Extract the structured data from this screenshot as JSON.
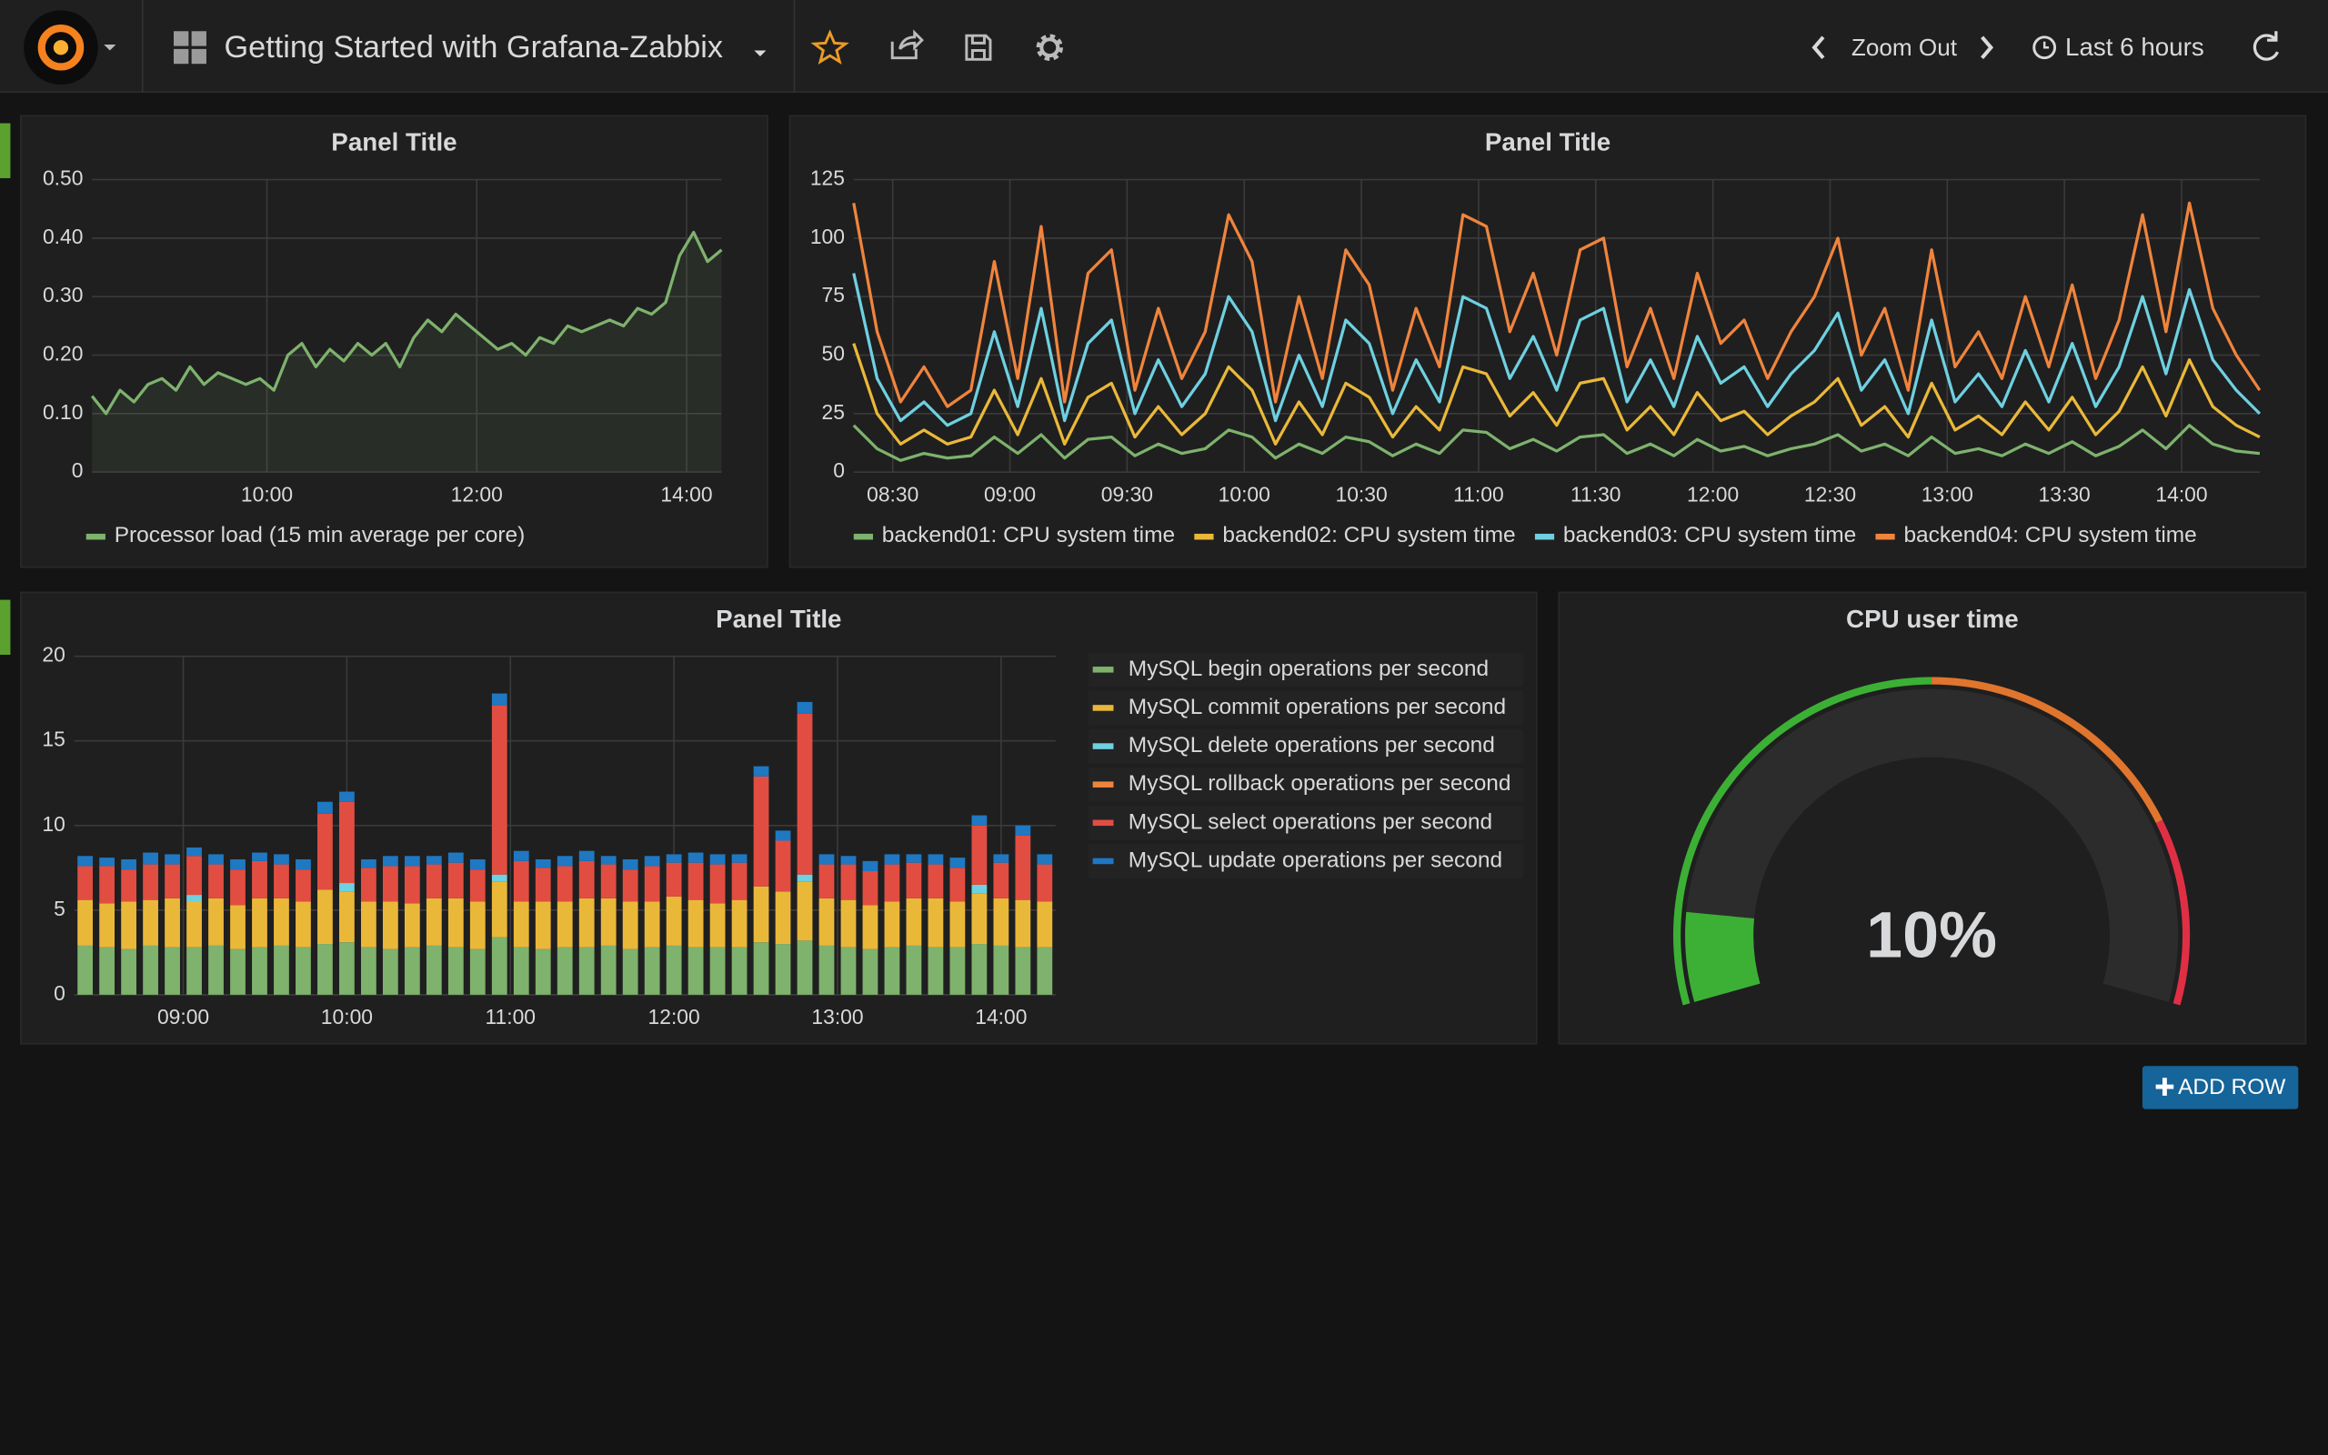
{
  "header": {
    "title": "Getting Started with Grafana-Zabbix",
    "zoom": "Zoom Out",
    "time_range": "Last 6 hours"
  },
  "add_row": "ADD ROW",
  "chart_data": [
    {
      "type": "line",
      "title": "Panel Title",
      "legend": "bottom",
      "grid": true,
      "fill": true,
      "xlim": [
        "08:20",
        "14:20"
      ],
      "xticks": [
        "10:00",
        "12:00",
        "14:00"
      ],
      "ylim": [
        0,
        0.5
      ],
      "yticks": [
        0,
        {
          "value": 0.1,
          "label": "0.10"
        },
        {
          "value": 0.2,
          "label": "0.20"
        },
        {
          "value": 0.3,
          "label": "0.30"
        },
        {
          "value": 0.4,
          "label": "0.40"
        },
        {
          "value": 0.5,
          "label": "0.50"
        }
      ],
      "x": [
        "08:20",
        "08:28",
        "08:36",
        "08:44",
        "08:52",
        "09:00",
        "09:08",
        "09:16",
        "09:24",
        "09:32",
        "09:40",
        "09:48",
        "09:56",
        "10:04",
        "10:12",
        "10:20",
        "10:28",
        "10:36",
        "10:44",
        "10:52",
        "11:00",
        "11:08",
        "11:16",
        "11:24",
        "11:32",
        "11:40",
        "11:48",
        "11:56",
        "12:04",
        "12:12",
        "12:20",
        "12:28",
        "12:36",
        "12:44",
        "12:52",
        "13:00",
        "13:08",
        "13:16",
        "13:24",
        "13:32",
        "13:40",
        "13:48",
        "13:56",
        "14:04",
        "14:12",
        "14:20"
      ],
      "series": [
        {
          "name": "Processor load (15 min average per core)",
          "color": "#7eb26d",
          "values": [
            0.13,
            0.1,
            0.14,
            0.12,
            0.15,
            0.16,
            0.14,
            0.18,
            0.15,
            0.17,
            0.16,
            0.15,
            0.16,
            0.14,
            0.2,
            0.22,
            0.18,
            0.21,
            0.19,
            0.22,
            0.2,
            0.22,
            0.18,
            0.23,
            0.26,
            0.24,
            0.27,
            0.25,
            0.23,
            0.21,
            0.22,
            0.2,
            0.23,
            0.22,
            0.25,
            0.24,
            0.25,
            0.26,
            0.25,
            0.28,
            0.27,
            0.29,
            0.37,
            0.41,
            0.36,
            0.38
          ]
        }
      ]
    },
    {
      "type": "line",
      "title": "Panel Title",
      "legend": "bottom",
      "grid": true,
      "fill": false,
      "xlim": [
        "08:20",
        "14:20"
      ],
      "xticks": [
        "08:30",
        "09:00",
        "09:30",
        "10:00",
        "10:30",
        "11:00",
        "11:30",
        "12:00",
        "12:30",
        "13:00",
        "13:30",
        "14:00"
      ],
      "ylim": [
        0,
        125
      ],
      "yticks": [
        0,
        25,
        50,
        75,
        100,
        125
      ],
      "x": [
        "08:20",
        "08:26",
        "08:32",
        "08:38",
        "08:44",
        "08:50",
        "08:56",
        "09:02",
        "09:08",
        "09:14",
        "09:20",
        "09:26",
        "09:32",
        "09:38",
        "09:44",
        "09:50",
        "09:56",
        "10:02",
        "10:08",
        "10:14",
        "10:20",
        "10:26",
        "10:32",
        "10:38",
        "10:44",
        "10:50",
        "10:56",
        "11:02",
        "11:08",
        "11:14",
        "11:20",
        "11:26",
        "11:32",
        "11:38",
        "11:44",
        "11:50",
        "11:56",
        "12:02",
        "12:08",
        "12:14",
        "12:20",
        "12:26",
        "12:32",
        "12:38",
        "12:44",
        "12:50",
        "12:56",
        "13:02",
        "13:08",
        "13:14",
        "13:20",
        "13:26",
        "13:32",
        "13:38",
        "13:44",
        "13:50",
        "13:56",
        "14:02",
        "14:08",
        "14:14",
        "14:20"
      ],
      "series": [
        {
          "name": "backend01: CPU system time",
          "color": "#7eb26d",
          "values": [
            20,
            10,
            5,
            8,
            6,
            7,
            15,
            8,
            16,
            6,
            14,
            15,
            7,
            12,
            8,
            10,
            18,
            15,
            6,
            12,
            8,
            15,
            13,
            7,
            12,
            8,
            18,
            17,
            10,
            14,
            9,
            15,
            16,
            8,
            12,
            7,
            14,
            9,
            11,
            7,
            10,
            12,
            16,
            9,
            12,
            7,
            15,
            8,
            10,
            7,
            12,
            8,
            13,
            7,
            11,
            18,
            10,
            20,
            12,
            9,
            8
          ]
        },
        {
          "name": "backend02: CPU system time",
          "color": "#eab839",
          "values": [
            55,
            25,
            12,
            18,
            12,
            15,
            35,
            16,
            40,
            12,
            32,
            38,
            15,
            28,
            16,
            25,
            45,
            35,
            12,
            30,
            16,
            38,
            32,
            15,
            28,
            18,
            45,
            42,
            24,
            34,
            20,
            38,
            40,
            18,
            28,
            16,
            34,
            22,
            26,
            16,
            24,
            30,
            40,
            20,
            28,
            15,
            38,
            18,
            24,
            16,
            30,
            18,
            32,
            16,
            26,
            45,
            24,
            48,
            28,
            20,
            15
          ]
        },
        {
          "name": "backend03: CPU system time",
          "color": "#6ed0e0",
          "values": [
            85,
            40,
            22,
            30,
            20,
            25,
            60,
            28,
            70,
            22,
            55,
            65,
            25,
            48,
            28,
            42,
            75,
            60,
            22,
            50,
            28,
            65,
            55,
            25,
            48,
            30,
            75,
            70,
            40,
            58,
            35,
            65,
            70,
            30,
            48,
            28,
            58,
            38,
            45,
            28,
            42,
            52,
            68,
            35,
            48,
            25,
            65,
            30,
            42,
            28,
            52,
            30,
            55,
            28,
            45,
            75,
            42,
            78,
            48,
            35,
            25
          ]
        },
        {
          "name": "backend04: CPU system time",
          "color": "#ef843c",
          "values": [
            115,
            60,
            30,
            45,
            28,
            35,
            90,
            40,
            105,
            30,
            85,
            95,
            35,
            70,
            40,
            60,
            110,
            90,
            30,
            75,
            40,
            95,
            80,
            35,
            70,
            45,
            110,
            105,
            60,
            85,
            50,
            95,
            100,
            45,
            70,
            40,
            85,
            55,
            65,
            40,
            60,
            75,
            100,
            50,
            70,
            35,
            95,
            45,
            60,
            40,
            75,
            45,
            80,
            40,
            65,
            110,
            60,
            115,
            70,
            50,
            35
          ]
        }
      ]
    },
    {
      "type": "bar",
      "title": "Panel Title",
      "legend": "right",
      "grid": true,
      "stacked": true,
      "xlim": [
        "08:20",
        "14:20"
      ],
      "xticks": [
        "09:00",
        "10:00",
        "11:00",
        "12:00",
        "13:00",
        "14:00"
      ],
      "ylim": [
        0,
        20
      ],
      "yticks": [
        0,
        5,
        10,
        15,
        20
      ],
      "x": [
        "08:24",
        "08:32",
        "08:40",
        "08:48",
        "08:56",
        "09:04",
        "09:12",
        "09:20",
        "09:28",
        "09:36",
        "09:44",
        "09:52",
        "10:00",
        "10:08",
        "10:16",
        "10:24",
        "10:32",
        "10:40",
        "10:48",
        "10:56",
        "11:04",
        "11:12",
        "11:20",
        "11:28",
        "11:36",
        "11:44",
        "11:52",
        "12:00",
        "12:08",
        "12:16",
        "12:24",
        "12:32",
        "12:40",
        "12:48",
        "12:56",
        "13:04",
        "13:12",
        "13:20",
        "13:28",
        "13:36",
        "13:44",
        "13:52",
        "14:00",
        "14:08",
        "14:16"
      ],
      "series": [
        {
          "name": "MySQL begin operations per second",
          "color": "#7eb26d",
          "values": [
            2.9,
            2.8,
            2.7,
            2.9,
            2.8,
            2.8,
            2.9,
            2.7,
            2.8,
            2.9,
            2.8,
            3.0,
            3.1,
            2.8,
            2.7,
            2.8,
            2.9,
            2.8,
            2.7,
            3.4,
            2.8,
            2.7,
            2.8,
            2.8,
            2.9,
            2.7,
            2.8,
            2.9,
            2.8,
            2.8,
            2.8,
            3.1,
            3.0,
            3.2,
            2.9,
            2.8,
            2.7,
            2.8,
            2.9,
            2.8,
            2.8,
            3.0,
            2.9,
            2.8,
            2.8
          ]
        },
        {
          "name": "MySQL commit operations per second",
          "color": "#eab839",
          "values": [
            2.7,
            2.6,
            2.8,
            2.7,
            2.9,
            2.7,
            2.8,
            2.6,
            2.9,
            2.8,
            2.7,
            3.2,
            3.0,
            2.7,
            2.8,
            2.6,
            2.8,
            2.9,
            2.8,
            3.3,
            2.7,
            2.8,
            2.7,
            2.9,
            2.8,
            2.8,
            2.7,
            2.9,
            2.8,
            2.6,
            2.8,
            3.3,
            3.1,
            3.5,
            2.8,
            2.8,
            2.6,
            2.7,
            2.8,
            2.9,
            2.7,
            3.0,
            2.8,
            2.8,
            2.7
          ]
        },
        {
          "name": "MySQL delete operations per second",
          "color": "#6ed0e0",
          "values": [
            0,
            0,
            0,
            0,
            0,
            0.4,
            0,
            0,
            0,
            0,
            0,
            0,
            0.5,
            0,
            0,
            0,
            0,
            0,
            0,
            0.4,
            0,
            0,
            0,
            0,
            0,
            0,
            0,
            0,
            0,
            0,
            0,
            0,
            0,
            0.4,
            0,
            0,
            0,
            0,
            0,
            0,
            0,
            0.5,
            0,
            0,
            0
          ]
        },
        {
          "name": "MySQL rollback operations per second",
          "color": "#ef843c",
          "values": [
            0,
            0,
            0,
            0,
            0,
            0,
            0,
            0,
            0,
            0,
            0,
            0,
            0,
            0,
            0,
            0,
            0,
            0,
            0,
            0,
            0,
            0,
            0,
            0,
            0,
            0,
            0,
            0,
            0,
            0,
            0,
            0,
            0,
            0,
            0,
            0,
            0,
            0,
            0,
            0,
            0,
            0,
            0,
            0,
            0
          ]
        },
        {
          "name": "MySQL select operations per second",
          "color": "#e24d42",
          "values": [
            2.0,
            2.2,
            1.9,
            2.1,
            2.0,
            2.3,
            2.0,
            2.1,
            2.2,
            2.0,
            1.9,
            4.5,
            4.8,
            2.0,
            2.1,
            2.2,
            2.0,
            2.1,
            1.9,
            10.0,
            2.4,
            2.0,
            2.1,
            2.2,
            2.0,
            1.9,
            2.1,
            2.0,
            2.2,
            2.3,
            2.2,
            6.5,
            3.0,
            9.5,
            2.0,
            2.1,
            2.0,
            2.2,
            2.1,
            2.0,
            2.0,
            3.5,
            2.1,
            3.8,
            2.2
          ]
        },
        {
          "name": "MySQL update operations per second",
          "color": "#1f78c1",
          "values": [
            0.6,
            0.5,
            0.6,
            0.7,
            0.6,
            0.5,
            0.6,
            0.6,
            0.5,
            0.6,
            0.6,
            0.7,
            0.6,
            0.5,
            0.6,
            0.6,
            0.5,
            0.6,
            0.6,
            0.7,
            0.6,
            0.5,
            0.6,
            0.6,
            0.5,
            0.6,
            0.6,
            0.5,
            0.6,
            0.6,
            0.5,
            0.6,
            0.6,
            0.7,
            0.6,
            0.5,
            0.6,
            0.6,
            0.5,
            0.6,
            0.6,
            0.6,
            0.5,
            0.6,
            0.6
          ]
        }
      ]
    },
    {
      "type": "gauge",
      "title": "CPU user time",
      "ylim": [
        0,
        100
      ],
      "values": [
        10
      ],
      "value_labels": [
        "10%"
      ],
      "thresholds": [
        50,
        80
      ],
      "threshold_colors": [
        "#3cb035",
        "#e0752d",
        "#e02f44"
      ]
    }
  ]
}
